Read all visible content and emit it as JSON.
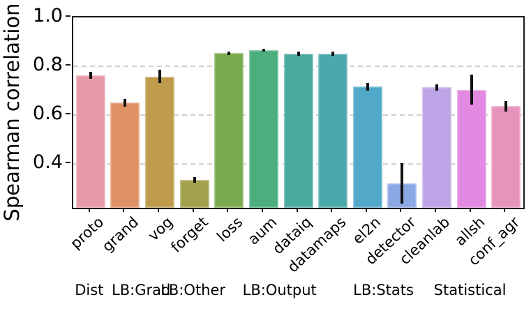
{
  "colors": {
    "background": "#ffffff",
    "axis_spine": "#1a1a1a",
    "gridline": "#d0d0d0",
    "error_bar": "#111111",
    "text": "#000000"
  },
  "chart_data": {
    "type": "bar",
    "title": "",
    "xlabel": "",
    "ylabel": "Spearman correlation",
    "ylim": [
      0.22,
      1.0
    ],
    "yticks": [
      0.4,
      0.6,
      0.8,
      1.0
    ],
    "ytick_labels": [
      "0.4",
      "0.6",
      "0.8",
      "1.0"
    ],
    "grid": "horizontal dashed at yticks, behind bars",
    "legend": "none",
    "categories": [
      "proto",
      "grand",
      "vog",
      "forget",
      "loss",
      "aum",
      "dataiq",
      "datamaps",
      "el2n",
      "detector",
      "cleanlab",
      "allsh",
      "conf_agr"
    ],
    "values": [
      0.763,
      0.651,
      0.758,
      0.334,
      0.853,
      0.866,
      0.851,
      0.852,
      0.716,
      0.32,
      0.713,
      0.704,
      0.636
    ],
    "errors": [
      0.014,
      0.016,
      0.028,
      0.011,
      0.007,
      0.006,
      0.008,
      0.008,
      0.015,
      0.084,
      0.013,
      0.061,
      0.021
    ],
    "bar_colors": [
      "#e899a7",
      "#e09265",
      "#bf9b4c",
      "#a3a14c",
      "#7aaa4e",
      "#4bae7c",
      "#4aaa9d",
      "#4ba9ab",
      "#52a8c8",
      "#8aa8e4",
      "#bda4e6",
      "#e28ae2",
      "#e794bd"
    ],
    "groups": [
      {
        "label": "Dist",
        "bar_indices": [
          0
        ]
      },
      {
        "label": "LB:Grad",
        "bar_indices": [
          1,
          2
        ]
      },
      {
        "label": "LB:Other",
        "bar_indices": [
          3
        ]
      },
      {
        "label": "LB:Output",
        "bar_indices": [
          4,
          5,
          6,
          7
        ]
      },
      {
        "label": "LB:Stats",
        "bar_indices": [
          8,
          9
        ]
      },
      {
        "label": "Statistical",
        "bar_indices": [
          10,
          11,
          12
        ]
      }
    ]
  }
}
